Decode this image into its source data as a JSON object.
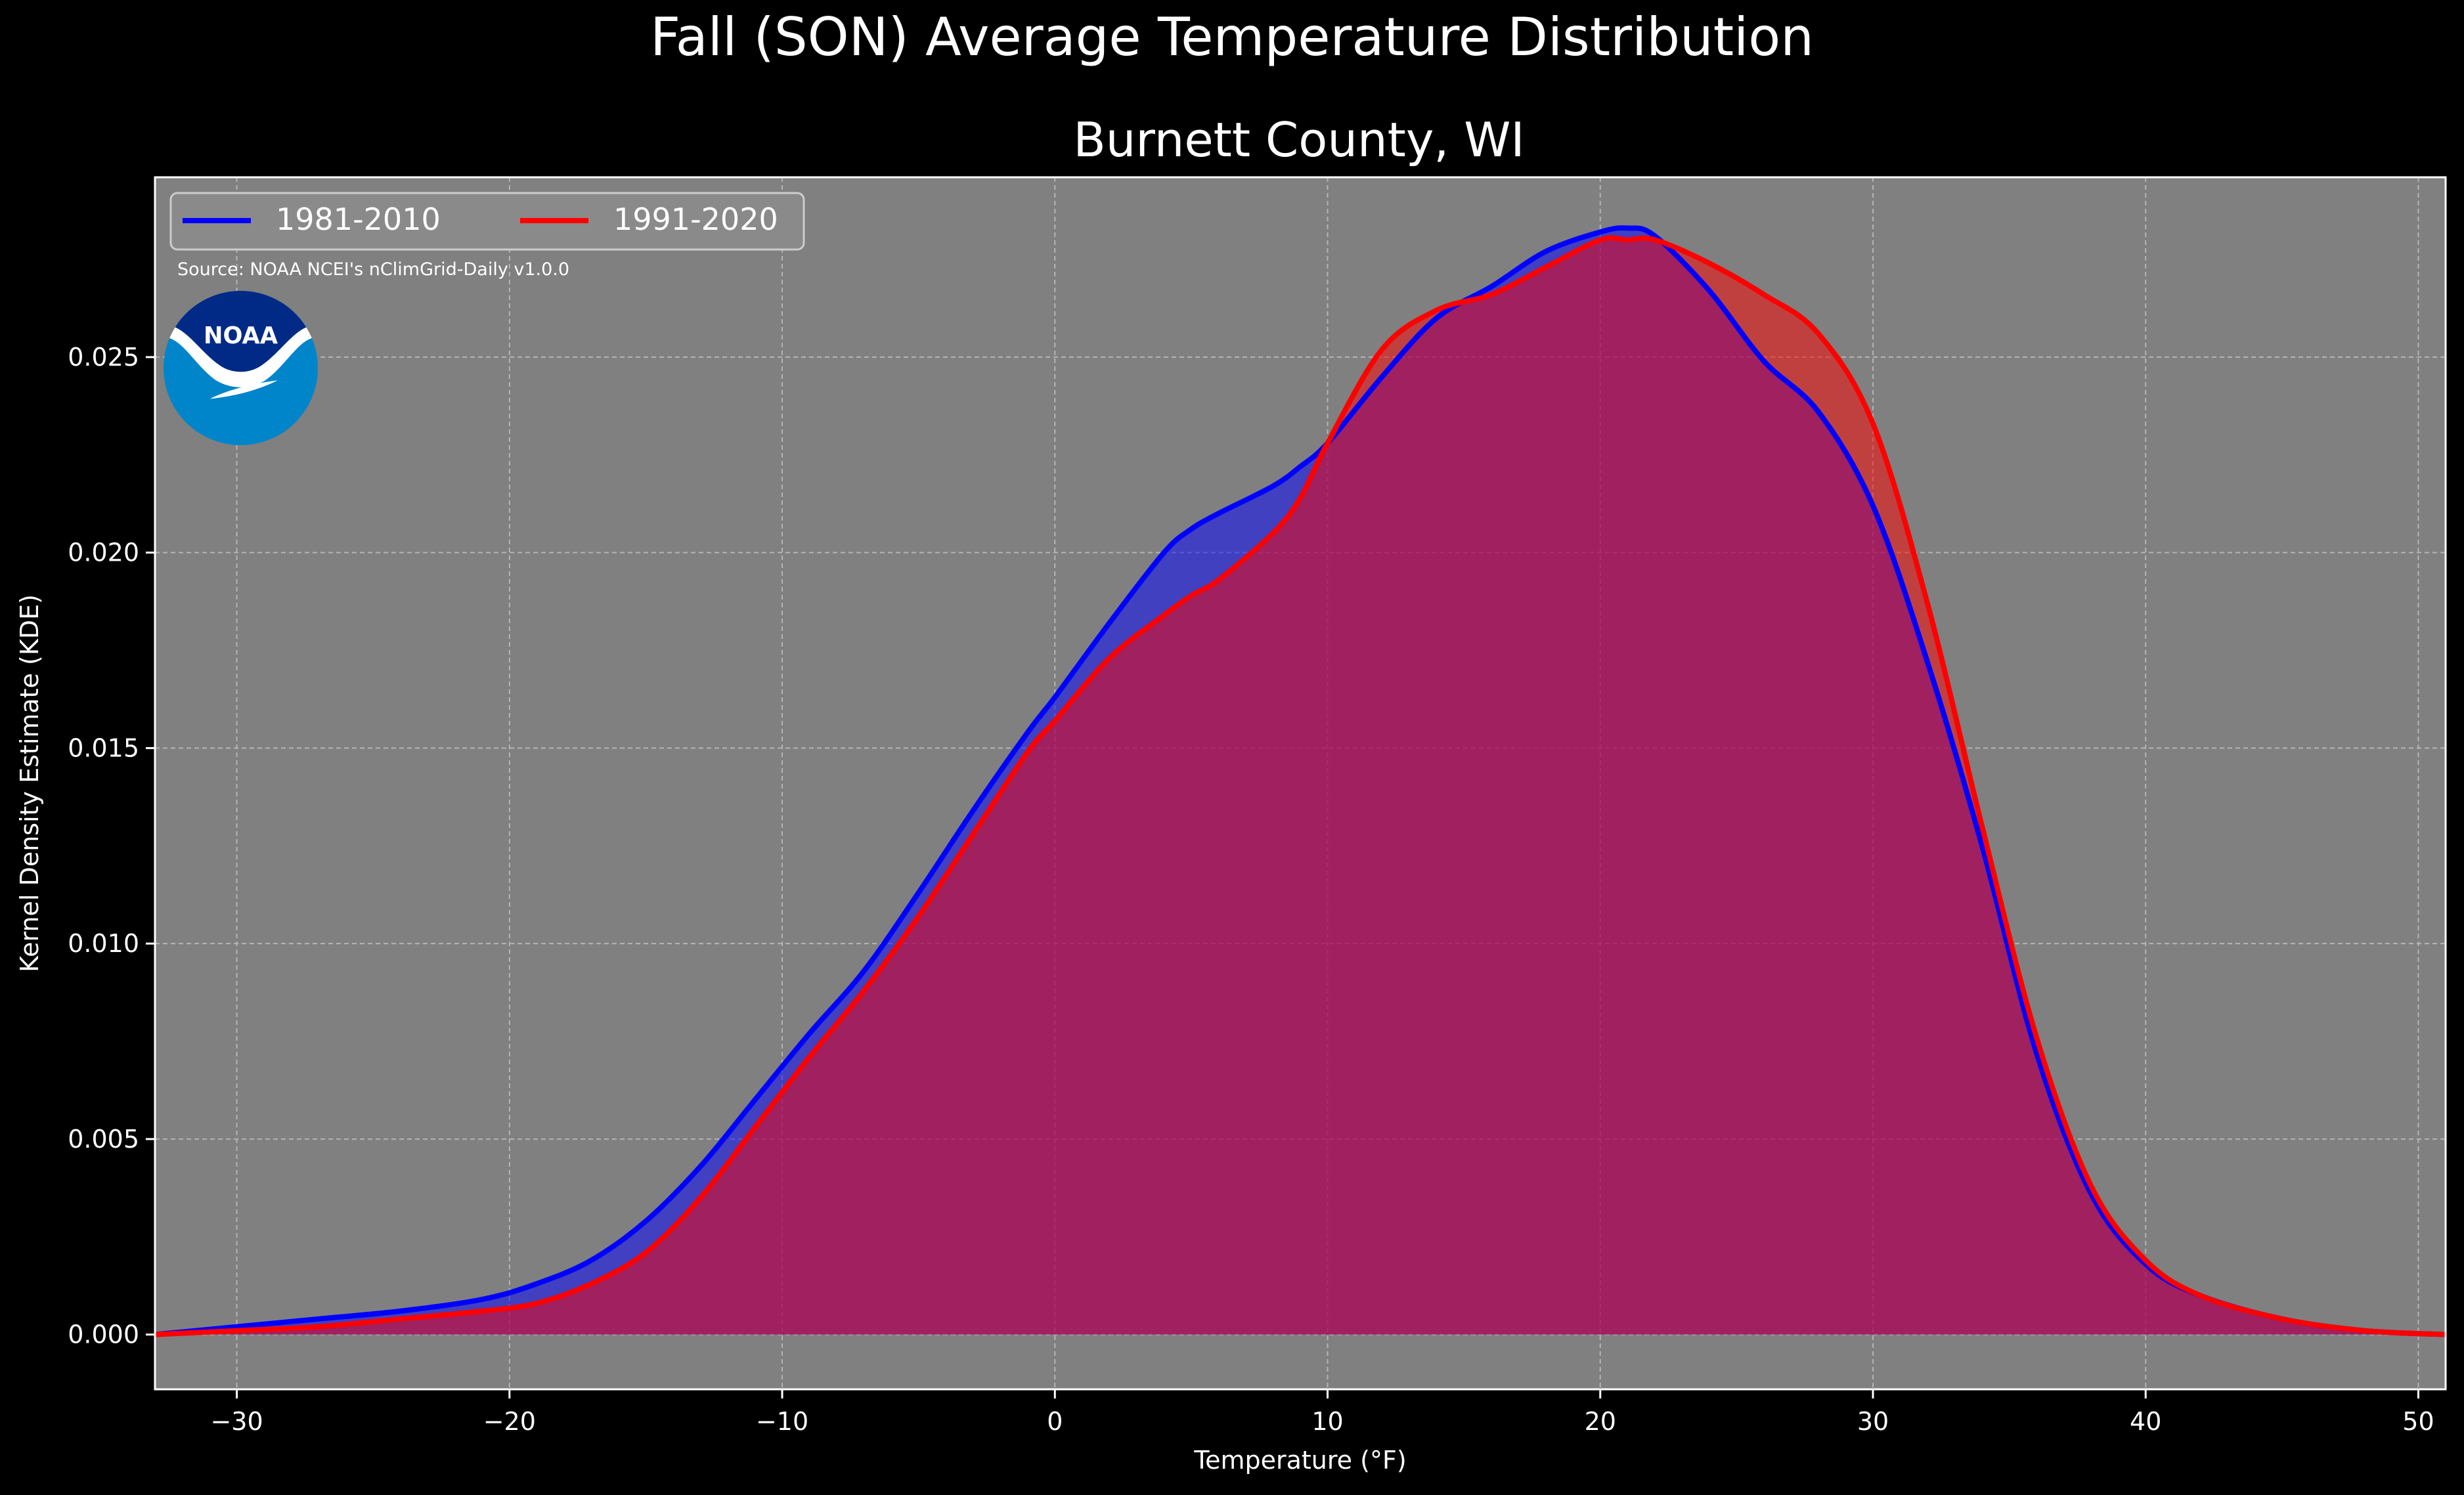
{
  "chart_data": {
    "type": "area",
    "title": "Fall (SON) Average Temperature Distribution",
    "subtitle": "Burnett County, WI",
    "xlabel": "Temperature (°F)",
    "ylabel": "Kernel Density Estimate (KDE)",
    "xlim": [
      -33,
      51
    ],
    "ylim": [
      -0.0014,
      0.0296
    ],
    "x_ticks": [
      -30,
      -20,
      -10,
      0,
      10,
      20,
      30,
      40,
      50
    ],
    "x_tick_labels": [
      "−30",
      "−20",
      "−10",
      "0",
      "10",
      "20",
      "30",
      "40",
      "50"
    ],
    "y_ticks": [
      0.0,
      0.005,
      0.01,
      0.015,
      0.02,
      0.025
    ],
    "y_tick_labels": [
      "0.000",
      "0.005",
      "0.010",
      "0.015",
      "0.020",
      "0.025"
    ],
    "grid": true,
    "legend_position": "top-left",
    "source_note": "Source: NOAA NCEI's nClimGrid-Daily v1.0.0",
    "logo_text": "NOAA",
    "x": [
      -33,
      -30,
      -27,
      -24,
      -21,
      -19,
      -17,
      -15,
      -13,
      -11,
      -9,
      -7,
      -5,
      -3,
      -1,
      0,
      2,
      4,
      5,
      6,
      8,
      9,
      10,
      12,
      14,
      16,
      18,
      20,
      21,
      22,
      24,
      26,
      28,
      30,
      32,
      34,
      36,
      38,
      40,
      42,
      45,
      48,
      51
    ],
    "series": [
      {
        "name": "1981-2010",
        "color": "#0000ff",
        "fill": "rgba(0,0,255,0.5)",
        "values": [
          0.0,
          0.0002,
          0.0004,
          0.0006,
          0.0009,
          0.0013,
          0.0019,
          0.0029,
          0.0043,
          0.006,
          0.0077,
          0.0093,
          0.0113,
          0.0134,
          0.0154,
          0.0163,
          0.0182,
          0.02,
          0.0206,
          0.021,
          0.0217,
          0.0222,
          0.0228,
          0.0245,
          0.026,
          0.0268,
          0.0277,
          0.0282,
          0.0283,
          0.0281,
          0.0267,
          0.0249,
          0.0236,
          0.0212,
          0.0172,
          0.0125,
          0.0072,
          0.0036,
          0.0018,
          0.001,
          0.0004,
          0.0001,
          0.0
        ]
      },
      {
        "name": "1991-2020",
        "color": "#ff0000",
        "fill": "rgba(255,0,0,0.5)",
        "values": [
          0.0,
          0.0001,
          0.0002,
          0.0004,
          0.0006,
          0.0008,
          0.0013,
          0.0021,
          0.0035,
          0.0053,
          0.0071,
          0.0088,
          0.0107,
          0.0128,
          0.0149,
          0.0157,
          0.0173,
          0.0184,
          0.0189,
          0.0193,
          0.0205,
          0.0214,
          0.0228,
          0.0252,
          0.0262,
          0.0266,
          0.0273,
          0.028,
          0.028,
          0.028,
          0.0274,
          0.0266,
          0.0256,
          0.0233,
          0.0187,
          0.013,
          0.0076,
          0.0038,
          0.0019,
          0.001,
          0.0004,
          0.0001,
          0.0
        ]
      }
    ]
  }
}
